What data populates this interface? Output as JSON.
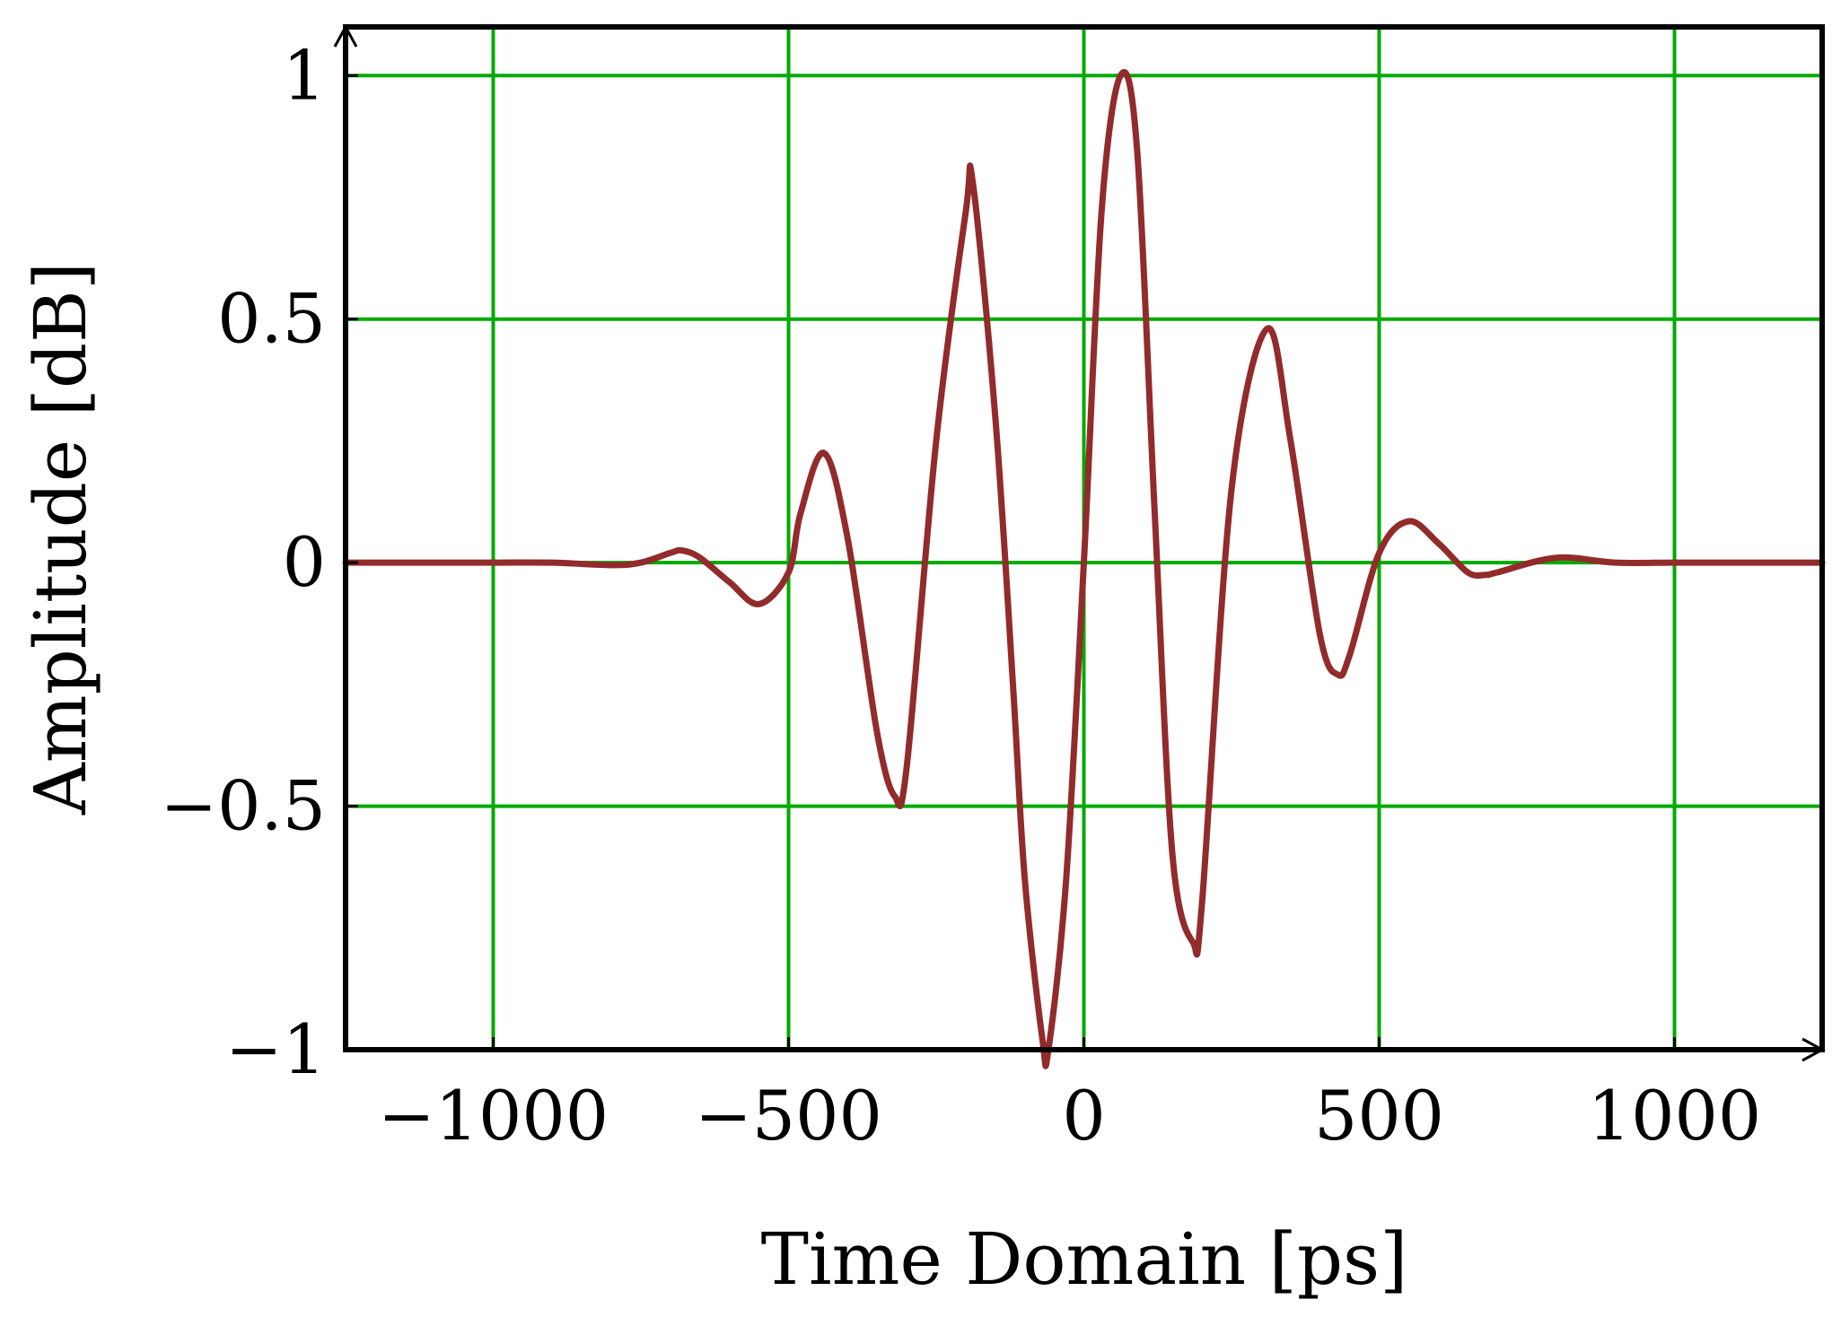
{
  "chart_data": {
    "type": "line",
    "xlabel": "Time Domain [ps]",
    "ylabel": "Amplitude [dB]",
    "xlim": [
      -1250,
      1250
    ],
    "ylim": [
      -1,
      1.1
    ],
    "xticks": [
      -1000,
      -500,
      0,
      500,
      1000
    ],
    "xtick_labels": [
      "−1000",
      "−500",
      "0",
      "500",
      "1000"
    ],
    "yticks": [
      -1,
      -0.5,
      0,
      0.5,
      1
    ],
    "ytick_labels": [
      "−1",
      "−0.5",
      "0",
      "0.5",
      "1"
    ],
    "grid": true,
    "colors": {
      "grid": "#00aa00",
      "line": "#922b2b",
      "axis": "#000000"
    },
    "series": [
      {
        "x": [
          -1250,
          -1100,
          -1000,
          -900,
          -800,
          -750,
          -700,
          -680,
          -650,
          -600,
          -550,
          -500,
          -480,
          -440,
          -400,
          -350,
          -320,
          -300,
          -250,
          -200,
          -188,
          -150,
          -120,
          -100,
          -70,
          -60,
          -30,
          0,
          30,
          62,
          90,
          120,
          150,
          185,
          200,
          250,
          310,
          350,
          400,
          430,
          450,
          500,
          550,
          600,
          650,
          680,
          700,
          800,
          900,
          1000,
          1100,
          1250
        ],
        "y": [
          0,
          0,
          0,
          0,
          -0.005,
          0,
          0.02,
          0.025,
          0.01,
          -0.04,
          -0.085,
          -0.02,
          0.1,
          0.225,
          0.05,
          -0.35,
          -0.48,
          -0.42,
          0.25,
          0.72,
          0.78,
          0.3,
          -0.25,
          -0.65,
          -0.98,
          -1.0,
          -0.65,
          0.0,
          0.72,
          1.0,
          0.85,
          0.1,
          -0.6,
          -0.78,
          -0.7,
          0.15,
          0.48,
          0.25,
          -0.15,
          -0.23,
          -0.19,
          0.02,
          0.085,
          0.04,
          -0.02,
          -0.025,
          -0.02,
          0.01,
          0,
          0,
          0,
          0
        ]
      }
    ]
  }
}
